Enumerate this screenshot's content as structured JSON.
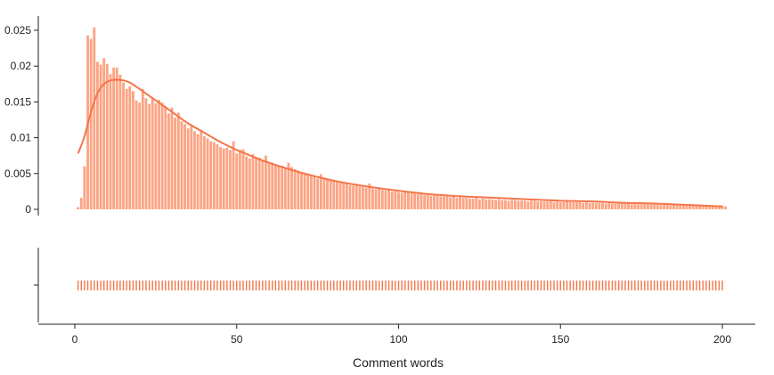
{
  "chart_data": {
    "type": "bar",
    "subtype": "histogram with density curve and rug plot",
    "xlabel": "Comment words",
    "ylabel": "",
    "xlim": [
      -10,
      210
    ],
    "ylim": [
      0,
      0.026
    ],
    "x_ticks": [
      0,
      50,
      100,
      150,
      200
    ],
    "x_tick_labels": [
      "0",
      "50",
      "100",
      "150",
      "200"
    ],
    "y_ticks": [
      0,
      0.005,
      0.01,
      0.015,
      0.02,
      0.025
    ],
    "y_tick_labels": [
      "0",
      "0.005",
      "0.01",
      "0.015",
      "0.02",
      "0.025"
    ],
    "grid": false,
    "legend": "none",
    "bar_color": "#fca483",
    "curve_color": "#f4754a",
    "rug_color": "#f4754a",
    "histogram": {
      "bin_start": 1,
      "bin_width": 1,
      "values": [
        0.0003,
        0.0016,
        0.006,
        0.0243,
        0.0238,
        0.0254,
        0.0206,
        0.0202,
        0.0211,
        0.0203,
        0.0189,
        0.0198,
        0.0198,
        0.0188,
        0.0177,
        0.0168,
        0.0172,
        0.0165,
        0.0152,
        0.0149,
        0.0168,
        0.0155,
        0.0147,
        0.0156,
        0.0148,
        0.0153,
        0.0149,
        0.0144,
        0.0134,
        0.0142,
        0.0128,
        0.0135,
        0.0123,
        0.0119,
        0.0113,
        0.0116,
        0.0109,
        0.0105,
        0.0111,
        0.0102,
        0.0099,
        0.0095,
        0.0094,
        0.0091,
        0.0087,
        0.0085,
        0.0086,
        0.0083,
        0.0095,
        0.0078,
        0.0083,
        0.0084,
        0.0074,
        0.0071,
        0.0077,
        0.0073,
        0.0072,
        0.0068,
        0.0075,
        0.0066,
        0.0065,
        0.0062,
        0.006,
        0.0061,
        0.0058,
        0.0065,
        0.0059,
        0.0056,
        0.0054,
        0.0052,
        0.0051,
        0.0049,
        0.0048,
        0.0047,
        0.0043,
        0.0049,
        0.0044,
        0.0042,
        0.004,
        0.004,
        0.0038,
        0.0037,
        0.0038,
        0.0036,
        0.0034,
        0.0033,
        0.0036,
        0.0032,
        0.0031,
        0.003,
        0.0036,
        0.0029,
        0.0028,
        0.0029,
        0.0027,
        0.0026,
        0.0028,
        0.0025,
        0.0025,
        0.0024,
        0.0023,
        0.0026,
        0.0023,
        0.0022,
        0.0022,
        0.0021,
        0.0021,
        0.002,
        0.0021,
        0.0019,
        0.002,
        0.0019,
        0.0018,
        0.0018,
        0.0018,
        0.0017,
        0.0018,
        0.0016,
        0.0017,
        0.0016,
        0.0016,
        0.0015,
        0.0015,
        0.0016,
        0.0014,
        0.0015,
        0.0014,
        0.0014,
        0.0014,
        0.0013,
        0.0014,
        0.0013,
        0.0013,
        0.0012,
        0.0013,
        0.0013,
        0.0012,
        0.0012,
        0.0012,
        0.0011,
        0.0012,
        0.0012,
        0.0011,
        0.0011,
        0.0011,
        0.0011,
        0.0011,
        0.001,
        0.0011,
        0.001,
        0.001,
        0.0011,
        0.001,
        0.001,
        0.001,
        0.001,
        0.0009,
        0.001,
        0.0009,
        0.0009,
        0.0009,
        0.0009,
        0.0009,
        0.0008,
        0.0009,
        0.0008,
        0.0008,
        0.0009,
        0.0008,
        0.0008,
        0.0008,
        0.0007,
        0.0008,
        0.0007,
        0.0007,
        0.0008,
        0.0007,
        0.0007,
        0.0007,
        0.0007,
        0.0006,
        0.0007,
        0.0007,
        0.0006,
        0.0006,
        0.0006,
        0.0006,
        0.0006,
        0.0006,
        0.0005,
        0.0006,
        0.0005,
        0.0005,
        0.0006,
        0.0005,
        0.0005,
        0.0005,
        0.0005,
        0.0004,
        0.0005,
        0.0004
      ]
    },
    "density_curve": {
      "x": [
        1,
        3,
        5,
        7,
        9,
        11,
        13,
        15,
        17,
        20,
        25,
        30,
        35,
        40,
        45,
        50,
        60,
        70,
        80,
        90,
        100,
        110,
        120,
        130,
        140,
        150,
        160,
        170,
        180,
        190,
        200
      ],
      "y": [
        0.0078,
        0.0102,
        0.0136,
        0.0162,
        0.0175,
        0.018,
        0.0181,
        0.018,
        0.0177,
        0.0168,
        0.0152,
        0.0136,
        0.012,
        0.0107,
        0.0094,
        0.0083,
        0.0065,
        0.0051,
        0.004,
        0.0032,
        0.0026,
        0.0021,
        0.0018,
        0.0016,
        0.0014,
        0.0012,
        0.0011,
        0.0009,
        0.0008,
        0.0006,
        0.0004
      ]
    },
    "rug": {
      "x_start": 1,
      "x_end": 200,
      "step": 1
    }
  }
}
